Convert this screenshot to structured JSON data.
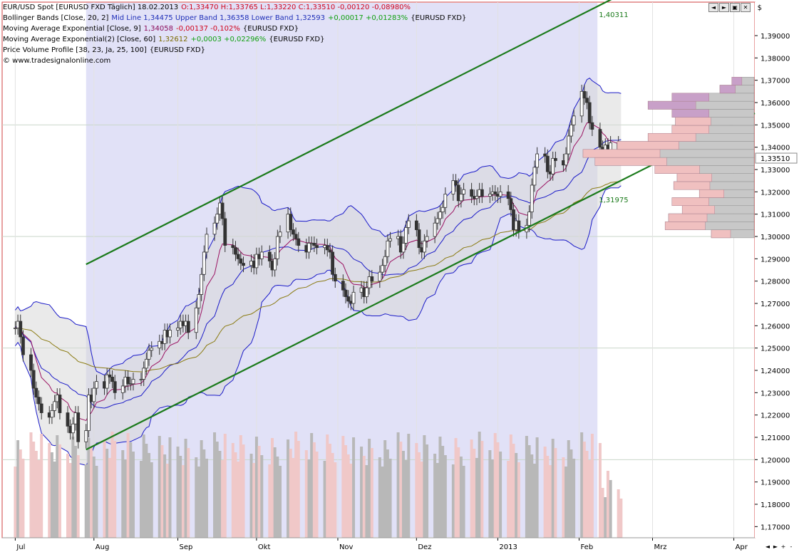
{
  "header": {
    "line1": {
      "instrument": "EUR/USD Spot [EURUSD FXD  Täglich] 18.02.2013",
      "ohlc": "O:1,33470 H:1,33765 L:1,33220 C:1,33510 -0,00120 -0,08980%"
    },
    "line2": {
      "name": "Bollinger Bands [Close, 20, 2]",
      "values": "Mid Line 1,34475 Upper Band 1,36358 Lower Band 1,32593",
      "change": "+0,00017 +0,01283%",
      "symbol": "{EURUSD FXD}"
    },
    "line3": {
      "name": "Moving Average Exponential [Close, 9]",
      "value": "1,34058",
      "change": "-0,00137 -0,102%",
      "symbol": "{EURUSD FXD}"
    },
    "line4": {
      "name": "Moving Average Exponential(2) [Close, 60]",
      "value": "1,32612",
      "change": "+0,0003 +0,02296%",
      "symbol": "{EURUSD FXD}"
    },
    "line5": {
      "name": "Price Volume Profile [38, 23, Ja, 25, 100]",
      "symbol": "{EURUSD FXD}"
    },
    "line6": {
      "copyright": "© www.tradesignalonline.com"
    }
  },
  "currency_label": "$",
  "window_buttons": [
    "◄",
    "►",
    "▣",
    "✕"
  ],
  "nav_buttons": [
    "◄",
    "►",
    "+",
    "-"
  ],
  "chart_data": {
    "type": "line",
    "title": "EUR/USD Spot [EURUSD FXD  Täglich] 18.02.2013",
    "xlabel": "",
    "ylabel": "",
    "ylim": [
      1.165,
      1.405
    ],
    "y_ticks": [
      "1,17000",
      "1,18000",
      "1,19000",
      "1,20000",
      "1,21000",
      "1,22000",
      "1,23000",
      "1,24000",
      "1,25000",
      "1,26000",
      "1,27000",
      "1,28000",
      "1,29000",
      "1,30000",
      "1,31000",
      "1,32000",
      "1,33000",
      "1,34000",
      "1,35000",
      "1,36000",
      "1,37000",
      "1,38000",
      "1,39000"
    ],
    "y_tick_values": [
      1.17,
      1.18,
      1.19,
      1.2,
      1.21,
      1.22,
      1.23,
      1.24,
      1.25,
      1.26,
      1.27,
      1.28,
      1.29,
      1.3,
      1.31,
      1.32,
      1.33,
      1.34,
      1.35,
      1.36,
      1.37,
      1.38,
      1.39
    ],
    "x_months": [
      "Jul",
      "Aug",
      "Sep",
      "Okt",
      "Nov",
      "Dez",
      "2013",
      "Feb",
      "Mrz",
      "Apr"
    ],
    "x_month_days": [
      0,
      30,
      62,
      92,
      123,
      153,
      184,
      215,
      243,
      274
    ],
    "x_range_days": [
      -5,
      282
    ],
    "grid": true,
    "last_price_label": "1,33510",
    "last_price": 1.3351,
    "channel": {
      "upper": {
        "x": [
          27,
          222
        ],
        "y": [
          1.2875,
          1.4031
        ],
        "label": "1,40311"
      },
      "lower": {
        "x": [
          27,
          222
        ],
        "y": [
          1.2045,
          1.31975
        ],
        "label": "1,31975"
      }
    },
    "highlight_box": {
      "x": [
        27,
        222
      ]
    },
    "price_close": [
      [
        0,
        1.259
      ],
      [
        1,
        1.262
      ],
      [
        2,
        1.255
      ],
      [
        3,
        1.247
      ],
      [
        6,
        1.24
      ],
      [
        7,
        1.232
      ],
      [
        8,
        1.228
      ],
      [
        9,
        1.225
      ],
      [
        10,
        1.221
      ],
      [
        13,
        1.219
      ],
      [
        14,
        1.222
      ],
      [
        15,
        1.226
      ],
      [
        16,
        1.229
      ],
      [
        17,
        1.221
      ],
      [
        20,
        1.215
      ],
      [
        21,
        1.212
      ],
      [
        22,
        1.216
      ],
      [
        23,
        1.221
      ],
      [
        24,
        1.208
      ],
      [
        27,
        1.213
      ],
      [
        28,
        1.229
      ],
      [
        29,
        1.226
      ],
      [
        30,
        1.232
      ],
      [
        31,
        1.235
      ],
      [
        34,
        1.232
      ],
      [
        35,
        1.238
      ],
      [
        36,
        1.237
      ],
      [
        37,
        1.235
      ],
      [
        38,
        1.23
      ],
      [
        41,
        1.233
      ],
      [
        42,
        1.237
      ],
      [
        43,
        1.234
      ],
      [
        44,
        1.234
      ],
      [
        45,
        1.236
      ],
      [
        48,
        1.236
      ],
      [
        49,
        1.241
      ],
      [
        50,
        1.245
      ],
      [
        51,
        1.249
      ],
      [
        52,
        1.25
      ],
      [
        55,
        1.253
      ],
      [
        56,
        1.252
      ],
      [
        57,
        1.258
      ],
      [
        58,
        1.255
      ],
      [
        59,
        1.258
      ],
      [
        62,
        1.259
      ],
      [
        63,
        1.262
      ],
      [
        64,
        1.26
      ],
      [
        65,
        1.262
      ],
      [
        66,
        1.257
      ],
      [
        69,
        1.268
      ],
      [
        70,
        1.274
      ],
      [
        71,
        1.283
      ],
      [
        72,
        1.293
      ],
      [
        73,
        1.301
      ],
      [
        76,
        1.306
      ],
      [
        77,
        1.31
      ],
      [
        78,
        1.315
      ],
      [
        79,
        1.308
      ],
      [
        80,
        1.296
      ],
      [
        83,
        1.295
      ],
      [
        84,
        1.292
      ],
      [
        85,
        1.29
      ],
      [
        86,
        1.288
      ],
      [
        87,
        1.287
      ],
      [
        90,
        1.289
      ],
      [
        91,
        1.286
      ],
      [
        92,
        1.292
      ],
      [
        93,
        1.29
      ],
      [
        94,
        1.293
      ],
      [
        97,
        1.289
      ],
      [
        98,
        1.285
      ],
      [
        99,
        1.29
      ],
      [
        100,
        1.3
      ],
      [
        101,
        1.302
      ],
      [
        104,
        1.31
      ],
      [
        105,
        1.303
      ],
      [
        106,
        1.301
      ],
      [
        107,
        1.299
      ],
      [
        108,
        1.296
      ],
      [
        111,
        1.293
      ],
      [
        112,
        1.297
      ],
      [
        113,
        1.297
      ],
      [
        114,
        1.296
      ],
      [
        115,
        1.295
      ],
      [
        118,
        1.296
      ],
      [
        119,
        1.294
      ],
      [
        120,
        1.293
      ],
      [
        121,
        1.283
      ],
      [
        122,
        1.28
      ],
      [
        125,
        1.276
      ],
      [
        126,
        1.273
      ],
      [
        127,
        1.271
      ],
      [
        128,
        1.27
      ],
      [
        129,
        1.275
      ],
      [
        132,
        1.277
      ],
      [
        133,
        1.273
      ],
      [
        134,
        1.277
      ],
      [
        135,
        1.282
      ],
      [
        136,
        1.28
      ],
      [
        139,
        1.284
      ],
      [
        140,
        1.287
      ],
      [
        141,
        1.291
      ],
      [
        142,
        1.298
      ],
      [
        143,
        1.299
      ],
      [
        146,
        1.3
      ],
      [
        147,
        1.293
      ],
      [
        148,
        1.297
      ],
      [
        149,
        1.304
      ],
      [
        150,
        1.307
      ],
      [
        153,
        1.303
      ],
      [
        154,
        1.295
      ],
      [
        155,
        1.293
      ],
      [
        156,
        1.298
      ],
      [
        157,
        1.3
      ],
      [
        160,
        1.306
      ],
      [
        161,
        1.308
      ],
      [
        162,
        1.311
      ],
      [
        163,
        1.313
      ],
      [
        164,
        1.319
      ],
      [
        167,
        1.325
      ],
      [
        168,
        1.323
      ],
      [
        169,
        1.316
      ],
      [
        170,
        1.319
      ],
      [
        171,
        1.321
      ],
      [
        174,
        1.318
      ],
      [
        175,
        1.317
      ],
      [
        176,
        1.318
      ],
      [
        177,
        1.321
      ],
      [
        178,
        1.318
      ],
      [
        181,
        1.319
      ],
      [
        182,
        1.32
      ],
      [
        183,
        1.319
      ],
      [
        184,
        1.318
      ],
      [
        185,
        1.32
      ],
      [
        188,
        1.317
      ],
      [
        189,
        1.312
      ],
      [
        190,
        1.303
      ],
      [
        191,
        1.307
      ],
      [
        192,
        1.302
      ],
      [
        195,
        1.305
      ],
      [
        196,
        1.311
      ],
      [
        197,
        1.323
      ],
      [
        198,
        1.331
      ],
      [
        199,
        1.337
      ],
      [
        202,
        1.336
      ],
      [
        203,
        1.329
      ],
      [
        204,
        1.328
      ],
      [
        205,
        1.335
      ],
      [
        206,
        1.334
      ],
      [
        209,
        1.332
      ],
      [
        210,
        1.337
      ],
      [
        211,
        1.345
      ],
      [
        212,
        1.35
      ],
      [
        213,
        1.354
      ],
      [
        216,
        1.365
      ],
      [
        217,
        1.362
      ],
      [
        218,
        1.36
      ],
      [
        219,
        1.351
      ],
      [
        220,
        1.348
      ],
      [
        223,
        1.34
      ],
      [
        224,
        1.338
      ],
      [
        225,
        1.341
      ],
      [
        226,
        1.335
      ],
      [
        227,
        1.342
      ],
      [
        230,
        1.336
      ],
      [
        231,
        1.335
      ]
    ],
    "volume_profile": [
      {
        "price": 1.3012,
        "total": 0.25
      },
      {
        "price": 1.3048,
        "total": 0.52
      },
      {
        "price": 1.3084,
        "total": 0.5
      },
      {
        "price": 1.312,
        "total": 0.42
      },
      {
        "price": 1.3156,
        "total": 0.48
      },
      {
        "price": 1.3192,
        "total": 0.32
      },
      {
        "price": 1.3228,
        "total": 0.47
      },
      {
        "price": 1.3264,
        "total": 0.45
      },
      {
        "price": 1.33,
        "total": 0.58
      },
      {
        "price": 1.3336,
        "total": 0.93
      },
      {
        "price": 1.3372,
        "total": 1.0
      },
      {
        "price": 1.3408,
        "total": 0.8
      },
      {
        "price": 1.3444,
        "total": 0.62
      },
      {
        "price": 1.348,
        "total": 0.48
      },
      {
        "price": 1.3516,
        "total": 0.46
      },
      {
        "price": 1.3552,
        "total": 0.48
      },
      {
        "price": 1.3588,
        "total": 0.62
      },
      {
        "price": 1.3624,
        "total": 0.48
      },
      {
        "price": 1.366,
        "total": 0.2
      },
      {
        "price": 1.3696,
        "total": 0.13
      }
    ]
  }
}
